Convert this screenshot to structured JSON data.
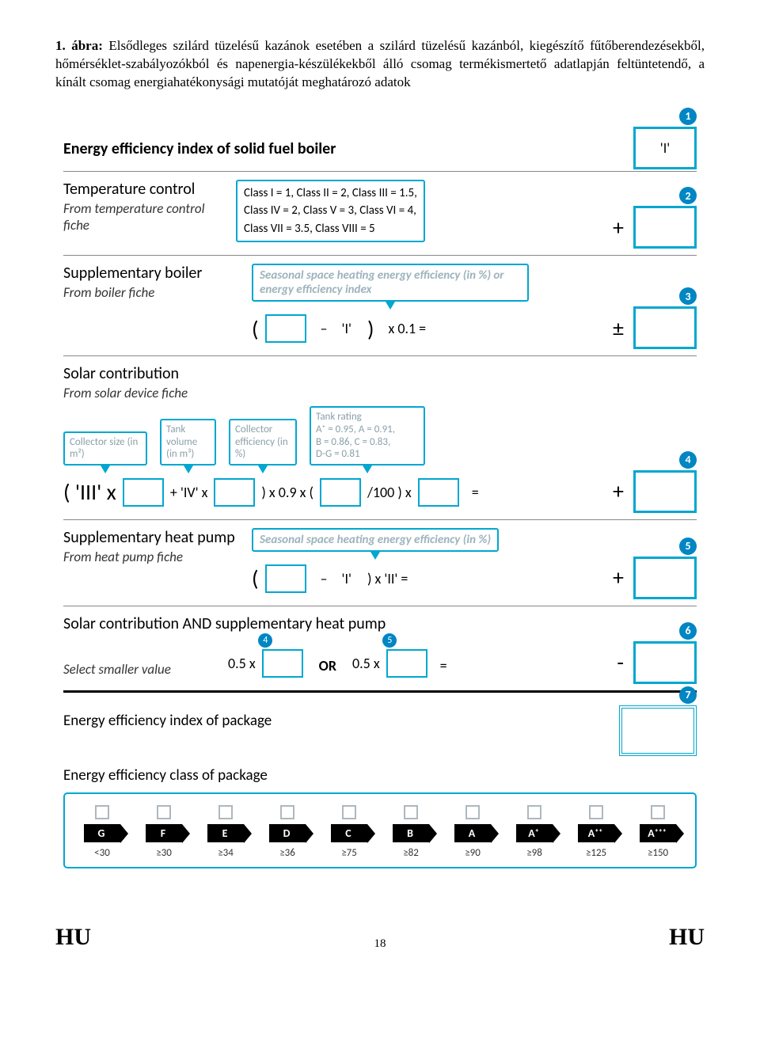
{
  "caption": {
    "lead": "1. ábra: ",
    "text": "Elsődleges szilárd tüzelésű kazánok esetében a szilárd tüzelésű kazánból, kiegészítő fűtőberendezésekből, hőmérséklet-szabályozókból és napenergia-készülékekből álló csomag termékismertető adatlapján feltüntetendő, a kínált csomag energiahatékonysági mutatóját meghatározó adatok"
  },
  "sec1": {
    "title": "Energy efficiency index of solid fuel boiler",
    "box_value": "'I'",
    "num": "1"
  },
  "sec2": {
    "title": "Temperature control",
    "sub": "From temperature control fiche",
    "classes_l1": "Class I = 1,  Class II = 2,  Class III = 1.5,",
    "classes_l2": "Class IV = 2,  Class V = 3,  Class VI = 4,",
    "classes_l3": "Class VII = 3.5,  Class VIII = 5",
    "num": "2",
    "op": "+"
  },
  "sec3": {
    "title": "Supplementary boiler",
    "sub": "From boiler fiche",
    "callout": "Seasonal space heating energy efficiency (in %) or energy efficiency index",
    "formula_mid": "'I'",
    "formula_tail": "x  0.1  =",
    "num": "3",
    "op": "±"
  },
  "sec4": {
    "title": "Solar contribution",
    "sub": "From solar device fiche",
    "c1": "Collector size (in m²)",
    "c2": "Tank volume (in m³)",
    "c3": "Collector efficiency (in %)",
    "c4_l1": "Tank rating",
    "c4_l2": "A⁺ = 0.95, A = 0.91,",
    "c4_l3": "B = 0.86, C = 0.83,",
    "c4_l4": "D-G = 0.81",
    "pre": "( 'III' x",
    "mid1": "+ 'IV'  x",
    "mid2": ")  x  0.9 x  (",
    "mid3": "/100 ) x",
    "eq": "=",
    "num": "4",
    "op": "+"
  },
  "sec5": {
    "title": "Supplementary heat pump",
    "sub": "From heat pump fiche",
    "callout": "Seasonal space heating energy efficiency (in %)",
    "formula_mid": "'I'",
    "formula_tail": ")    x   'II'  =",
    "num": "5",
    "op": "+"
  },
  "sec6": {
    "title": "Solar contribution AND supplementary heat pump",
    "sub": "Select smaller value",
    "f_a": "0.5 x",
    "f_or": "OR",
    "f_b": "0.5 x",
    "eq": "=",
    "ref4": "4",
    "ref5": "5",
    "num": "6",
    "op": "-"
  },
  "sec7": {
    "title": "Energy efficiency index of package",
    "num": "7"
  },
  "sec8": {
    "title": "Energy efficiency class of package",
    "classes": [
      "G",
      "F",
      "E",
      "D",
      "C",
      "B",
      "A",
      "A⁺",
      "A⁺⁺",
      "A⁺⁺⁺"
    ],
    "values": [
      "<30",
      "≥30",
      "≥34",
      "≥36",
      "≥75",
      "≥82",
      "≥90",
      "≥98",
      "≥125",
      "≥150"
    ]
  },
  "footer": {
    "left": "HU",
    "page": "18",
    "right": "HU"
  }
}
